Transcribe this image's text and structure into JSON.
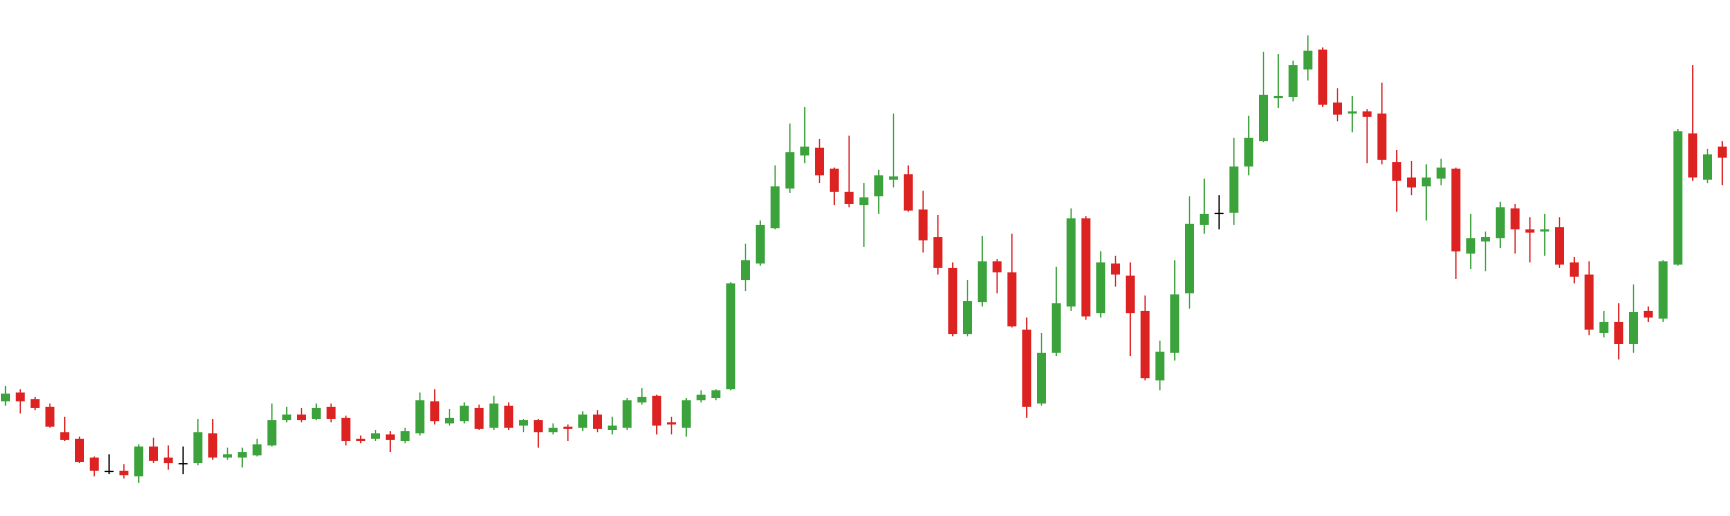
{
  "chart_data": {
    "type": "candlestick",
    "up_color": "#3ca33c",
    "down_color": "#dd2222",
    "flat_color": "#000000",
    "ylim": [
      0,
      468
    ],
    "open": [
      104,
      112,
      106,
      99,
      76,
      70,
      53,
      41,
      41,
      36,
      63,
      53,
      48,
      48,
      75,
      53,
      53,
      55,
      64,
      87,
      92,
      88,
      99,
      89,
      70,
      70,
      74,
      68,
      75,
      104,
      84,
      86,
      98,
      80,
      100,
      82,
      87,
      76,
      81,
      80,
      92,
      78,
      80,
      103,
      109,
      85,
      80,
      105,
      107,
      115,
      214,
      229,
      261,
      297,
      327,
      334,
      315,
      294,
      282,
      290,
      305,
      310,
      278,
      253,
      225,
      165,
      194,
      231,
      221,
      169,
      102,
      148,
      190,
      270,
      184,
      229,
      218,
      186,
      123,
      148,
      202,
      264,
      275,
      275,
      317,
      340,
      379,
      380,
      405,
      423,
      375,
      365,
      367,
      365,
      321,
      307,
      299,
      306,
      315,
      238,
      249,
      252,
      279,
      260,
      258,
      262,
      230,
      219,
      166,
      176,
      156,
      186,
      179,
      228,
      347,
      305,
      335
    ],
    "high": [
      118,
      115,
      108,
      102,
      90,
      72,
      54,
      56,
      47,
      65,
      71,
      64,
      63,
      88,
      88,
      62,
      62,
      70,
      102,
      99,
      98,
      102,
      102,
      91,
      73,
      78,
      77,
      80,
      112,
      115,
      97,
      103,
      101,
      109,
      103,
      88,
      88,
      84,
      83,
      95,
      96,
      90,
      107,
      116,
      110,
      90,
      107,
      114,
      115,
      212,
      247,
      268,
      318,
      356,
      371,
      342,
      316,
      345,
      302,
      314,
      365,
      318,
      295,
      273,
      230,
      214,
      254,
      233,
      256,
      180,
      166,
      226,
      279,
      272,
      240,
      236,
      230,
      200,
      159,
      232,
      290,
      306,
      291,
      343,
      363,
      421,
      419,
      413,
      436,
      425,
      388,
      381,
      369,
      393,
      332,
      322,
      319,
      324,
      316,
      274,
      258,
      285,
      283,
      271,
      274,
      271,
      235,
      231,
      186,
      193,
      210,
      190,
      232,
      351,
      409,
      333,
      340
    ],
    "low": [
      100,
      93,
      96,
      80,
      68,
      48,
      36,
      38,
      34,
      30,
      48,
      42,
      38,
      46,
      51,
      51,
      44,
      54,
      63,
      85,
      85,
      87,
      85,
      64,
      66,
      68,
      58,
      66,
      73,
      83,
      82,
      84,
      78,
      78,
      78,
      76,
      62,
      74,
      68,
      77,
      76,
      74,
      78,
      101,
      74,
      74,
      72,
      103,
      105,
      114,
      204,
      227,
      260,
      293,
      320,
      302,
      282,
      280,
      244,
      274,
      298,
      276,
      239,
      219,
      163,
      163,
      190,
      202,
      171,
      89,
      100,
      145,
      186,
      178,
      180,
      208,
      145,
      123,
      114,
      141,
      188,
      256,
      260,
      264,
      309,
      339,
      370,
      376,
      395,
      371,
      358,
      348,
      320,
      319,
      276,
      291,
      268,
      300,
      215,
      224,
      222,
      243,
      238,
      230,
      236,
      225,
      211,
      164,
      162,
      142,
      148,
      176,
      176,
      227,
      304,
      302,
      300
    ],
    "close": [
      111,
      104,
      98,
      81,
      69,
      49,
      41,
      41,
      37,
      63,
      50,
      48,
      48,
      76,
      53,
      56,
      58,
      65,
      87,
      92,
      87,
      98,
      88,
      68,
      68,
      75,
      69,
      77,
      105,
      86,
      89,
      100,
      79,
      102,
      80,
      87,
      76,
      80,
      79,
      92,
      79,
      82,
      105,
      108,
      82,
      83,
      105,
      110,
      114,
      211,
      232,
      264,
      299,
      330,
      335,
      309,
      294,
      283,
      289,
      309,
      308,
      277,
      250,
      225,
      165,
      195,
      231,
      221,
      172,
      99,
      148,
      193,
      270,
      181,
      230,
      219,
      184,
      125,
      149,
      201,
      265,
      274,
      275,
      317,
      343,
      382,
      381,
      409,
      422,
      373,
      364,
      367,
      362,
      323,
      304,
      298,
      307,
      316,
      240,
      252,
      253,
      280,
      260,
      257,
      260,
      228,
      217,
      169,
      176,
      156,
      185,
      180,
      231,
      349,
      307,
      328,
      325
    ]
  }
}
